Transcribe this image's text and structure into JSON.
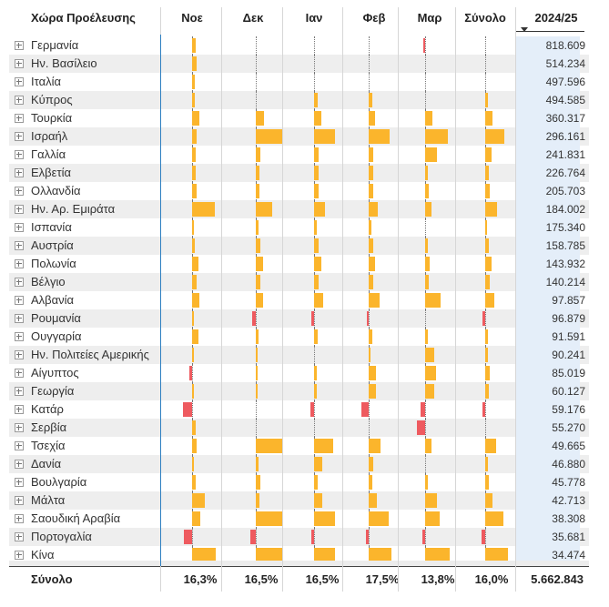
{
  "columns": {
    "country": "Χώρα Προέλευσης",
    "months": [
      "Νοε",
      "Δεκ",
      "Ιαν",
      "Φεβ",
      "Μαρ",
      "Σύνολο"
    ],
    "value": "2024/25"
  },
  "colors": {
    "positive": "#fbb52c",
    "negative": "#ee5a5f",
    "highlight": "#e4eef9",
    "rowAlt": "#eeeeee"
  },
  "rows": [
    {
      "country": "Γερμανία",
      "value": "818.609",
      "bars": [
        3,
        0,
        0,
        0,
        -1,
        0
      ]
    },
    {
      "country": "Ην. Βασίλειο",
      "value": "514.234",
      "bars": [
        4,
        0,
        0,
        0,
        0,
        0
      ]
    },
    {
      "country": "Ιταλία",
      "value": "497.596",
      "bars": [
        2,
        0,
        0,
        0,
        0,
        0
      ]
    },
    {
      "country": "Κύπρος",
      "value": "494.585",
      "bars": [
        2,
        0,
        3,
        3,
        0,
        2
      ]
    },
    {
      "country": "Τουρκία",
      "value": "360.317",
      "bars": [
        6,
        7,
        6,
        5,
        6,
        6
      ]
    },
    {
      "country": "Ισραήλ",
      "value": "296.161",
      "bars": [
        4,
        22,
        18,
        18,
        19,
        16
      ]
    },
    {
      "country": "Γαλλία",
      "value": "241.831",
      "bars": [
        3,
        4,
        4,
        4,
        10,
        5
      ]
    },
    {
      "country": "Ελβετία",
      "value": "226.764",
      "bars": [
        3,
        3,
        4,
        4,
        2,
        3
      ]
    },
    {
      "country": "Ολλανδία",
      "value": "205.703",
      "bars": [
        4,
        3,
        4,
        4,
        3,
        4
      ]
    },
    {
      "country": "Ην. Αρ. Εμιράτα",
      "value": "184.002",
      "bars": [
        19,
        14,
        9,
        8,
        5,
        10
      ]
    },
    {
      "country": "Ισπανία",
      "value": "175.340",
      "bars": [
        1,
        2,
        2,
        2,
        0,
        1
      ]
    },
    {
      "country": "Αυστρία",
      "value": "158.785",
      "bars": [
        2,
        4,
        4,
        4,
        2,
        3
      ]
    },
    {
      "country": "Πολωνία",
      "value": "143.932",
      "bars": [
        5,
        6,
        6,
        5,
        4,
        5
      ]
    },
    {
      "country": "Βέλγιο",
      "value": "140.214",
      "bars": [
        4,
        4,
        4,
        4,
        3,
        4
      ]
    },
    {
      "country": "Αλβανία",
      "value": "97.857",
      "bars": [
        6,
        6,
        8,
        9,
        13,
        8
      ]
    },
    {
      "country": "Ρουμανία",
      "value": "96.879",
      "bars": [
        1,
        -3,
        -2,
        -1,
        0,
        -2
      ]
    },
    {
      "country": "Ουγγαρία",
      "value": "91.591",
      "bars": [
        5,
        2,
        3,
        3,
        2,
        2
      ]
    },
    {
      "country": "Ην. Πολιτείες Αμερικής",
      "value": "90.241",
      "bars": [
        1,
        1,
        0,
        1,
        8,
        2
      ]
    },
    {
      "country": "Αίγυπτος",
      "value": "85.019",
      "bars": [
        -2,
        1,
        2,
        6,
        9,
        4
      ]
    },
    {
      "country": "Γεωργία",
      "value": "60.127",
      "bars": [
        1,
        1,
        2,
        6,
        8,
        3
      ]
    },
    {
      "country": "Κατάρ",
      "value": "59.176",
      "bars": [
        -8,
        0,
        -3,
        -6,
        -4,
        -2
      ]
    },
    {
      "country": "Σερβία",
      "value": "55.270",
      "bars": [
        3,
        0,
        0,
        0,
        -7,
        0
      ]
    },
    {
      "country": "Τσεχία",
      "value": "49.665",
      "bars": [
        4,
        22,
        16,
        10,
        5,
        9
      ]
    },
    {
      "country": "Δανία",
      "value": "46.880",
      "bars": [
        1,
        2,
        7,
        4,
        0,
        2
      ]
    },
    {
      "country": "Βουλγαρία",
      "value": "45.778",
      "bars": [
        3,
        4,
        3,
        3,
        2,
        3
      ]
    },
    {
      "country": "Μάλτα",
      "value": "42.713",
      "bars": [
        11,
        3,
        7,
        7,
        10,
        6
      ]
    },
    {
      "country": "Σαουδική Αραβία",
      "value": "38.308",
      "bars": [
        7,
        22,
        18,
        17,
        12,
        15
      ]
    },
    {
      "country": "Πορτογαλία",
      "value": "35.681",
      "bars": [
        -7,
        -5,
        -2,
        -2,
        -2,
        -3
      ]
    },
    {
      "country": "Κίνα",
      "value": "34.474",
      "bars": [
        20,
        22,
        18,
        19,
        21,
        19
      ]
    }
  ],
  "footer": {
    "label": "Σύνολο",
    "percents": [
      "16,3%",
      "16,5%",
      "16,5%",
      "17,5%",
      "13,8%",
      "16,0%"
    ],
    "total": "5.662.843"
  }
}
